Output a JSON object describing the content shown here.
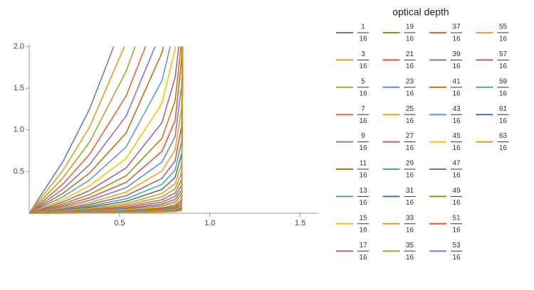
{
  "chart_data": {
    "type": "line",
    "legend_title": "optical depth",
    "xlim": [
      0,
      1.6
    ],
    "ylim": [
      0,
      2.03
    ],
    "xticks": [
      0.5,
      {
        "value": 1,
        "label": "1.0"
      },
      1.5
    ],
    "yticks": [
      0.5,
      {
        "value": 1,
        "label": "1.0"
      },
      1.5,
      {
        "value": 2,
        "label": "2.0"
      }
    ],
    "series": [
      {
        "name": {
          "numerator": "1",
          "denominator": "16"
        },
        "color": "#5E81B5",
        "x": [
          0,
          0.188,
          0.334,
          0.468
        ],
        "values": [
          0,
          0.625,
          1.25,
          2
        ]
      },
      {
        "name": {
          "numerator": "3",
          "denominator": "16"
        },
        "color": "#E19C24",
        "x": [
          0,
          0.188,
          0.334,
          0.527
        ],
        "values": [
          0,
          0.517,
          1.033,
          2
        ]
      },
      {
        "name": {
          "numerator": "5",
          "denominator": "16"
        },
        "color": "#8FB032",
        "x": [
          0,
          0.188,
          0.334,
          0.537,
          0.587
        ],
        "values": [
          0,
          0.427,
          0.853,
          1.706,
          2
        ]
      },
      {
        "name": {
          "numerator": "7",
          "denominator": "16"
        },
        "color": "#EB6235",
        "x": [
          0,
          0.188,
          0.334,
          0.537,
          0.644
        ],
        "values": [
          0,
          0.353,
          0.705,
          1.41,
          2
        ]
      },
      {
        "name": {
          "numerator": "9",
          "denominator": "16"
        },
        "color": "#8778B3",
        "x": [
          0,
          0.188,
          0.334,
          0.537,
          0.697
        ],
        "values": [
          0,
          0.292,
          0.583,
          1.167,
          2
        ]
      },
      {
        "name": {
          "numerator": "11",
          "denominator": "16"
        },
        "color": "#C56E1A",
        "x": [
          0,
          0.188,
          0.334,
          0.537,
          0.735,
          0.743
        ],
        "values": [
          0,
          0.241,
          0.482,
          0.963,
          1.927,
          2
        ]
      },
      {
        "name": {
          "numerator": "13",
          "denominator": "16"
        },
        "color": "#5D9EC7",
        "x": [
          0,
          0.188,
          0.334,
          0.537,
          0.735,
          0.781
        ],
        "values": [
          0,
          0.199,
          0.398,
          0.796,
          1.592,
          2
        ]
      },
      {
        "name": {
          "numerator": "15",
          "denominator": "16"
        },
        "color": "#FFBF00",
        "x": [
          0,
          0.188,
          0.334,
          0.537,
          0.735,
          0.808,
          0.809
        ],
        "values": [
          0,
          0.165,
          0.329,
          0.658,
          1.317,
          1.975,
          2
        ]
      },
      {
        "name": {
          "numerator": "17",
          "denominator": "16"
        },
        "color": "#A5609D",
        "x": [
          0,
          0.188,
          0.334,
          0.537,
          0.735,
          0.808,
          0.828
        ],
        "values": [
          0,
          0.136,
          0.272,
          0.544,
          1.088,
          1.632,
          2
        ]
      },
      {
        "name": {
          "numerator": "19",
          "denominator": "16"
        },
        "color": "#929600",
        "x": [
          0,
          0.188,
          0.334,
          0.537,
          0.735,
          0.808,
          0.84
        ],
        "values": [
          0,
          0.112,
          0.225,
          0.45,
          0.899,
          1.349,
          2
        ]
      },
      {
        "name": {
          "numerator": "21",
          "denominator": "16"
        },
        "color": "#E95536",
        "x": [
          0,
          0.188,
          0.334,
          0.537,
          0.735,
          0.808,
          0.844,
          0.846
        ],
        "values": [
          0,
          0.093,
          0.186,
          0.371,
          0.743,
          1.114,
          1.857,
          2
        ]
      },
      {
        "name": {
          "numerator": "23",
          "denominator": "16"
        },
        "color": "#6685D9",
        "x": [
          0,
          0.188,
          0.334,
          0.537,
          0.735,
          0.808,
          0.844,
          0.849
        ],
        "values": [
          0,
          0.077,
          0.154,
          0.307,
          0.614,
          0.921,
          1.535,
          2
        ]
      },
      {
        "name": {
          "numerator": "25",
          "denominator": "16"
        },
        "color": "#F89F13",
        "x": [
          0,
          0.188,
          0.334,
          0.537,
          0.735,
          0.808,
          0.844,
          0.85
        ],
        "values": [
          0,
          0.063,
          0.127,
          0.254,
          0.507,
          0.761,
          1.269,
          2
        ]
      },
      {
        "name": {
          "numerator": "27",
          "denominator": "16"
        },
        "color": "#BC5B80",
        "x": [
          0,
          0.188,
          0.334,
          0.537,
          0.735,
          0.808,
          0.844,
          0.85
        ],
        "values": [
          0,
          0.052,
          0.105,
          0.21,
          0.419,
          0.629,
          1.049,
          2
        ]
      },
      {
        "name": {
          "numerator": "29",
          "denominator": "16"
        },
        "color": "#47B66D",
        "x": [
          0,
          0.188,
          0.334,
          0.537,
          0.735,
          0.808,
          0.844,
          0.85
        ],
        "values": [
          0,
          0.043,
          0.087,
          0.173,
          0.347,
          0.52,
          0.867,
          2
        ]
      },
      {
        "name": {
          "numerator": "31",
          "denominator": "16"
        },
        "color": "#4A6FB0",
        "x": [
          0,
          0.188,
          0.334,
          0.537,
          0.735,
          0.808,
          0.844,
          0.85
        ],
        "values": [
          0,
          0.036,
          0.072,
          0.143,
          0.286,
          0.43,
          0.716,
          2
        ]
      },
      {
        "name": {
          "numerator": "33",
          "denominator": "16"
        },
        "color": "#E19C24",
        "x": [
          0,
          0.188,
          0.334,
          0.537,
          0.735,
          0.808,
          0.844,
          0.85
        ],
        "values": [
          0,
          0.03,
          0.059,
          0.118,
          0.237,
          0.355,
          0.592,
          2
        ]
      },
      {
        "name": {
          "numerator": "35",
          "denominator": "16"
        },
        "color": "#8FB032",
        "x": [
          0,
          0.188,
          0.334,
          0.537,
          0.735,
          0.808,
          0.844,
          0.85
        ],
        "values": [
          0,
          0.024,
          0.049,
          0.098,
          0.196,
          0.294,
          0.489,
          2
        ]
      },
      {
        "name": {
          "numerator": "37",
          "denominator": "16"
        },
        "color": "#EB6235",
        "x": [
          0,
          0.188,
          0.334,
          0.537,
          0.735,
          0.808,
          0.844,
          0.85
        ],
        "values": [
          0,
          0.02,
          0.04,
          0.081,
          0.162,
          0.243,
          0.404,
          2
        ]
      },
      {
        "name": {
          "numerator": "39",
          "denominator": "16"
        },
        "color": "#8778B3",
        "x": [
          0,
          0.188,
          0.334,
          0.537,
          0.735,
          0.808,
          0.844,
          0.85
        ],
        "values": [
          0,
          0.017,
          0.033,
          0.067,
          0.134,
          0.2,
          0.334,
          2
        ]
      },
      {
        "name": {
          "numerator": "41",
          "denominator": "16"
        },
        "color": "#C56E1A",
        "x": [
          0,
          0.188,
          0.334,
          0.537,
          0.735,
          0.808,
          0.844,
          0.85
        ],
        "values": [
          0,
          0.014,
          0.028,
          0.055,
          0.11,
          0.166,
          0.276,
          2
        ]
      },
      {
        "name": {
          "numerator": "43",
          "denominator": "16"
        },
        "color": "#5D9EC7",
        "x": [
          0,
          0.188,
          0.334,
          0.537,
          0.735,
          0.808,
          0.844,
          0.85
        ],
        "values": [
          0,
          0.011,
          0.023,
          0.046,
          0.091,
          0.137,
          0.228,
          2
        ]
      },
      {
        "name": {
          "numerator": "45",
          "denominator": "16"
        },
        "color": "#FFBF00",
        "x": [
          0,
          0.188,
          0.334,
          0.537,
          0.735,
          0.808,
          0.844,
          0.85
        ],
        "values": [
          0,
          0.009,
          0.019,
          0.038,
          0.075,
          0.113,
          0.189,
          2
        ]
      },
      {
        "name": {
          "numerator": "47",
          "denominator": "16"
        },
        "color": "#A5609D",
        "x": [
          0,
          0.188,
          0.334,
          0.537,
          0.735,
          0.808,
          0.844,
          0.85
        ],
        "values": [
          0,
          0.008,
          0.016,
          0.031,
          0.062,
          0.094,
          0.156,
          2
        ]
      },
      {
        "name": {
          "numerator": "49",
          "denominator": "16"
        },
        "color": "#929600",
        "x": [
          0,
          0.188,
          0.334,
          0.537,
          0.735,
          0.808,
          0.844,
          0.85
        ],
        "values": [
          0,
          0.006,
          0.013,
          0.026,
          0.052,
          0.077,
          0.129,
          2
        ]
      },
      {
        "name": {
          "numerator": "51",
          "denominator": "16"
        },
        "color": "#E95536",
        "x": [
          0,
          0.188,
          0.334,
          0.537,
          0.735,
          0.808,
          0.844,
          0.85
        ],
        "values": [
          0,
          0.005,
          0.011,
          0.021,
          0.043,
          0.064,
          0.106,
          2
        ]
      },
      {
        "name": {
          "numerator": "53",
          "denominator": "16"
        },
        "color": "#6685D9",
        "x": [
          0,
          0.188,
          0.334,
          0.537,
          0.735,
          0.808,
          0.844,
          0.85
        ],
        "values": [
          0,
          0.004,
          0.009,
          0.018,
          0.035,
          0.053,
          0.088,
          2
        ]
      },
      {
        "name": {
          "numerator": "55",
          "denominator": "16"
        },
        "color": "#F89F13",
        "x": [
          0,
          0.188,
          0.334,
          0.537,
          0.735,
          0.808,
          0.844,
          0.85
        ],
        "values": [
          0,
          0.004,
          0.007,
          0.015,
          0.029,
          0.044,
          0.073,
          2
        ]
      },
      {
        "name": {
          "numerator": "57",
          "denominator": "16"
        },
        "color": "#BC5B80",
        "x": [
          0,
          0.188,
          0.334,
          0.537,
          0.735,
          0.808,
          0.844,
          0.85
        ],
        "values": [
          0,
          0.003,
          0.006,
          0.012,
          0.024,
          0.036,
          0.06,
          2
        ]
      },
      {
        "name": {
          "numerator": "59",
          "denominator": "16"
        },
        "color": "#47B66D",
        "x": [
          0,
          0.188,
          0.334,
          0.537,
          0.735,
          0.808,
          0.844,
          0.85
        ],
        "values": [
          0,
          0.002,
          0.005,
          0.01,
          0.02,
          0.03,
          0.05,
          2
        ]
      },
      {
        "name": {
          "numerator": "61",
          "denominator": "16"
        },
        "color": "#4A6FB0",
        "x": [
          0,
          0.188,
          0.334,
          0.537,
          0.735,
          0.808,
          0.844,
          0.85
        ],
        "values": [
          0,
          0.002,
          0.004,
          0.008,
          0.016,
          0.025,
          0.041,
          2
        ]
      },
      {
        "name": {
          "numerator": "63",
          "denominator": "16"
        },
        "color": "#E19C24",
        "x": [
          0,
          0.188,
          0.334,
          0.537,
          0.735,
          0.808,
          0.844,
          0.85
        ],
        "values": [
          0,
          0.002,
          0.003,
          0.007,
          0.014,
          0.02,
          0.034,
          2
        ]
      }
    ]
  }
}
